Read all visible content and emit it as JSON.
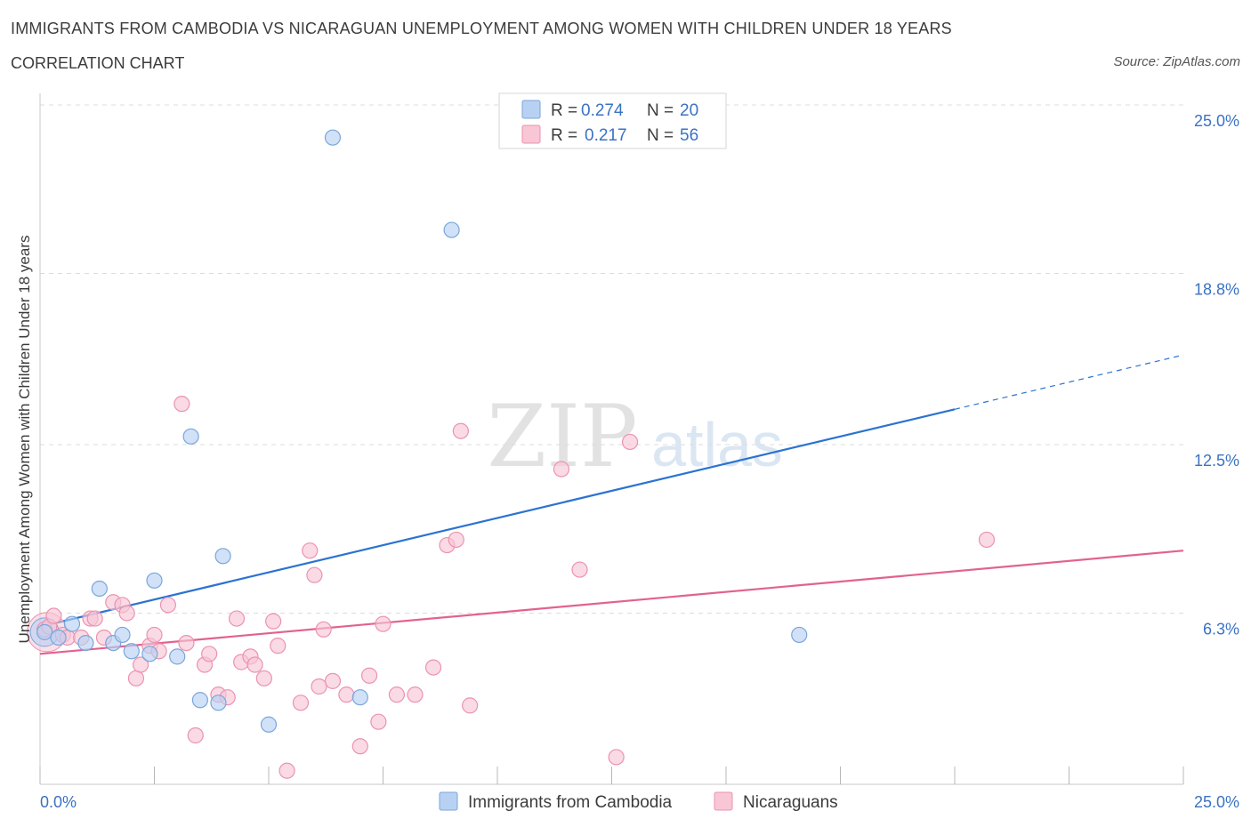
{
  "header": {
    "title": "IMMIGRANTS FROM CAMBODIA VS NICARAGUAN UNEMPLOYMENT AMONG WOMEN WITH CHILDREN UNDER 18 YEARS",
    "subtitle": "CORRELATION CHART",
    "source": "Source: ZipAtlas.com"
  },
  "watermark": {
    "zip": "ZIP",
    "atlas": "atlas"
  },
  "colors": {
    "cambodia_fill": "#b8d1f3",
    "cambodia_stroke": "#7aa6db",
    "cambodia_line": "#2b73d1",
    "nicaragua_fill": "#f8c6d5",
    "nicaragua_stroke": "#eb93b0",
    "nicaragua_line": "#e2628f",
    "value_text": "#3a72c4",
    "grid": "#dcdcdc"
  },
  "chart_data": {
    "type": "scatter",
    "ylabel": "Unemployment Among Women with Children Under 18 years",
    "xlim": [
      0,
      25
    ],
    "ylim": [
      0,
      25
    ],
    "x_tick_labels": [
      "0.0%",
      "25.0%"
    ],
    "y_ticks": [
      6.3,
      12.5,
      18.8,
      25.0
    ],
    "y_tick_labels": [
      "6.3%",
      "12.5%",
      "18.8%",
      "25.0%"
    ],
    "grid": "horizontal dashed",
    "legend_top": [
      {
        "r_label": "R =",
        "r_value": "0.274",
        "n_label": "N =",
        "n_value": "20"
      },
      {
        "r_label": "R =",
        "r_value": "0.217",
        "n_label": "N =",
        "n_value": "56"
      }
    ],
    "series": [
      {
        "name": "Immigrants from Cambodia",
        "trend": {
          "x0": 0.0,
          "y0": 5.8,
          "x1": 20.0,
          "y1": 13.8,
          "dash_x1": 25.0,
          "dash_y1": 15.8
        },
        "points": [
          [
            0.1,
            5.6
          ],
          [
            0.4,
            5.4
          ],
          [
            0.7,
            5.9
          ],
          [
            1.0,
            5.2
          ],
          [
            1.3,
            7.2
          ],
          [
            1.6,
            5.2
          ],
          [
            1.8,
            5.5
          ],
          [
            2.0,
            4.9
          ],
          [
            2.4,
            4.8
          ],
          [
            2.5,
            7.5
          ],
          [
            3.0,
            4.7
          ],
          [
            3.3,
            12.8
          ],
          [
            3.5,
            3.1
          ],
          [
            3.9,
            3.0
          ],
          [
            4.0,
            8.4
          ],
          [
            5.0,
            2.2
          ],
          [
            6.4,
            23.8
          ],
          [
            7.0,
            3.2
          ],
          [
            9.0,
            20.4
          ],
          [
            16.6,
            5.5
          ]
        ]
      },
      {
        "name": "Nicaraguans",
        "trend": {
          "x0": 0.0,
          "y0": 4.8,
          "x1": 25.0,
          "y1": 8.6
        },
        "points": [
          [
            0.1,
            5.7
          ],
          [
            0.2,
            5.8
          ],
          [
            0.3,
            6.2
          ],
          [
            0.5,
            5.5
          ],
          [
            0.6,
            5.4
          ],
          [
            0.9,
            5.4
          ],
          [
            1.1,
            6.1
          ],
          [
            1.2,
            6.1
          ],
          [
            1.4,
            5.4
          ],
          [
            1.6,
            6.7
          ],
          [
            1.8,
            6.6
          ],
          [
            1.9,
            6.3
          ],
          [
            2.1,
            3.9
          ],
          [
            2.2,
            4.4
          ],
          [
            2.4,
            5.1
          ],
          [
            2.5,
            5.5
          ],
          [
            2.6,
            4.9
          ],
          [
            2.8,
            6.6
          ],
          [
            3.1,
            14.0
          ],
          [
            3.2,
            5.2
          ],
          [
            3.4,
            1.8
          ],
          [
            3.6,
            4.4
          ],
          [
            3.7,
            4.8
          ],
          [
            3.9,
            3.3
          ],
          [
            4.1,
            3.2
          ],
          [
            4.3,
            6.1
          ],
          [
            4.4,
            4.5
          ],
          [
            4.6,
            4.7
          ],
          [
            4.7,
            4.4
          ],
          [
            4.9,
            3.9
          ],
          [
            5.1,
            6.0
          ],
          [
            5.2,
            5.1
          ],
          [
            5.4,
            0.5
          ],
          [
            5.7,
            3.0
          ],
          [
            5.9,
            8.6
          ],
          [
            6.0,
            7.7
          ],
          [
            6.1,
            3.6
          ],
          [
            6.2,
            5.7
          ],
          [
            6.4,
            3.8
          ],
          [
            6.7,
            3.3
          ],
          [
            7.0,
            1.4
          ],
          [
            7.2,
            4.0
          ],
          [
            7.4,
            2.3
          ],
          [
            7.5,
            5.9
          ],
          [
            7.8,
            3.3
          ],
          [
            8.2,
            3.3
          ],
          [
            8.6,
            4.3
          ],
          [
            8.9,
            8.8
          ],
          [
            9.1,
            9.0
          ],
          [
            9.2,
            13.0
          ],
          [
            9.4,
            2.9
          ],
          [
            11.4,
            11.6
          ],
          [
            11.8,
            7.9
          ],
          [
            12.6,
            1.0
          ],
          [
            12.9,
            12.6
          ],
          [
            20.7,
            9.0
          ]
        ]
      }
    ]
  }
}
